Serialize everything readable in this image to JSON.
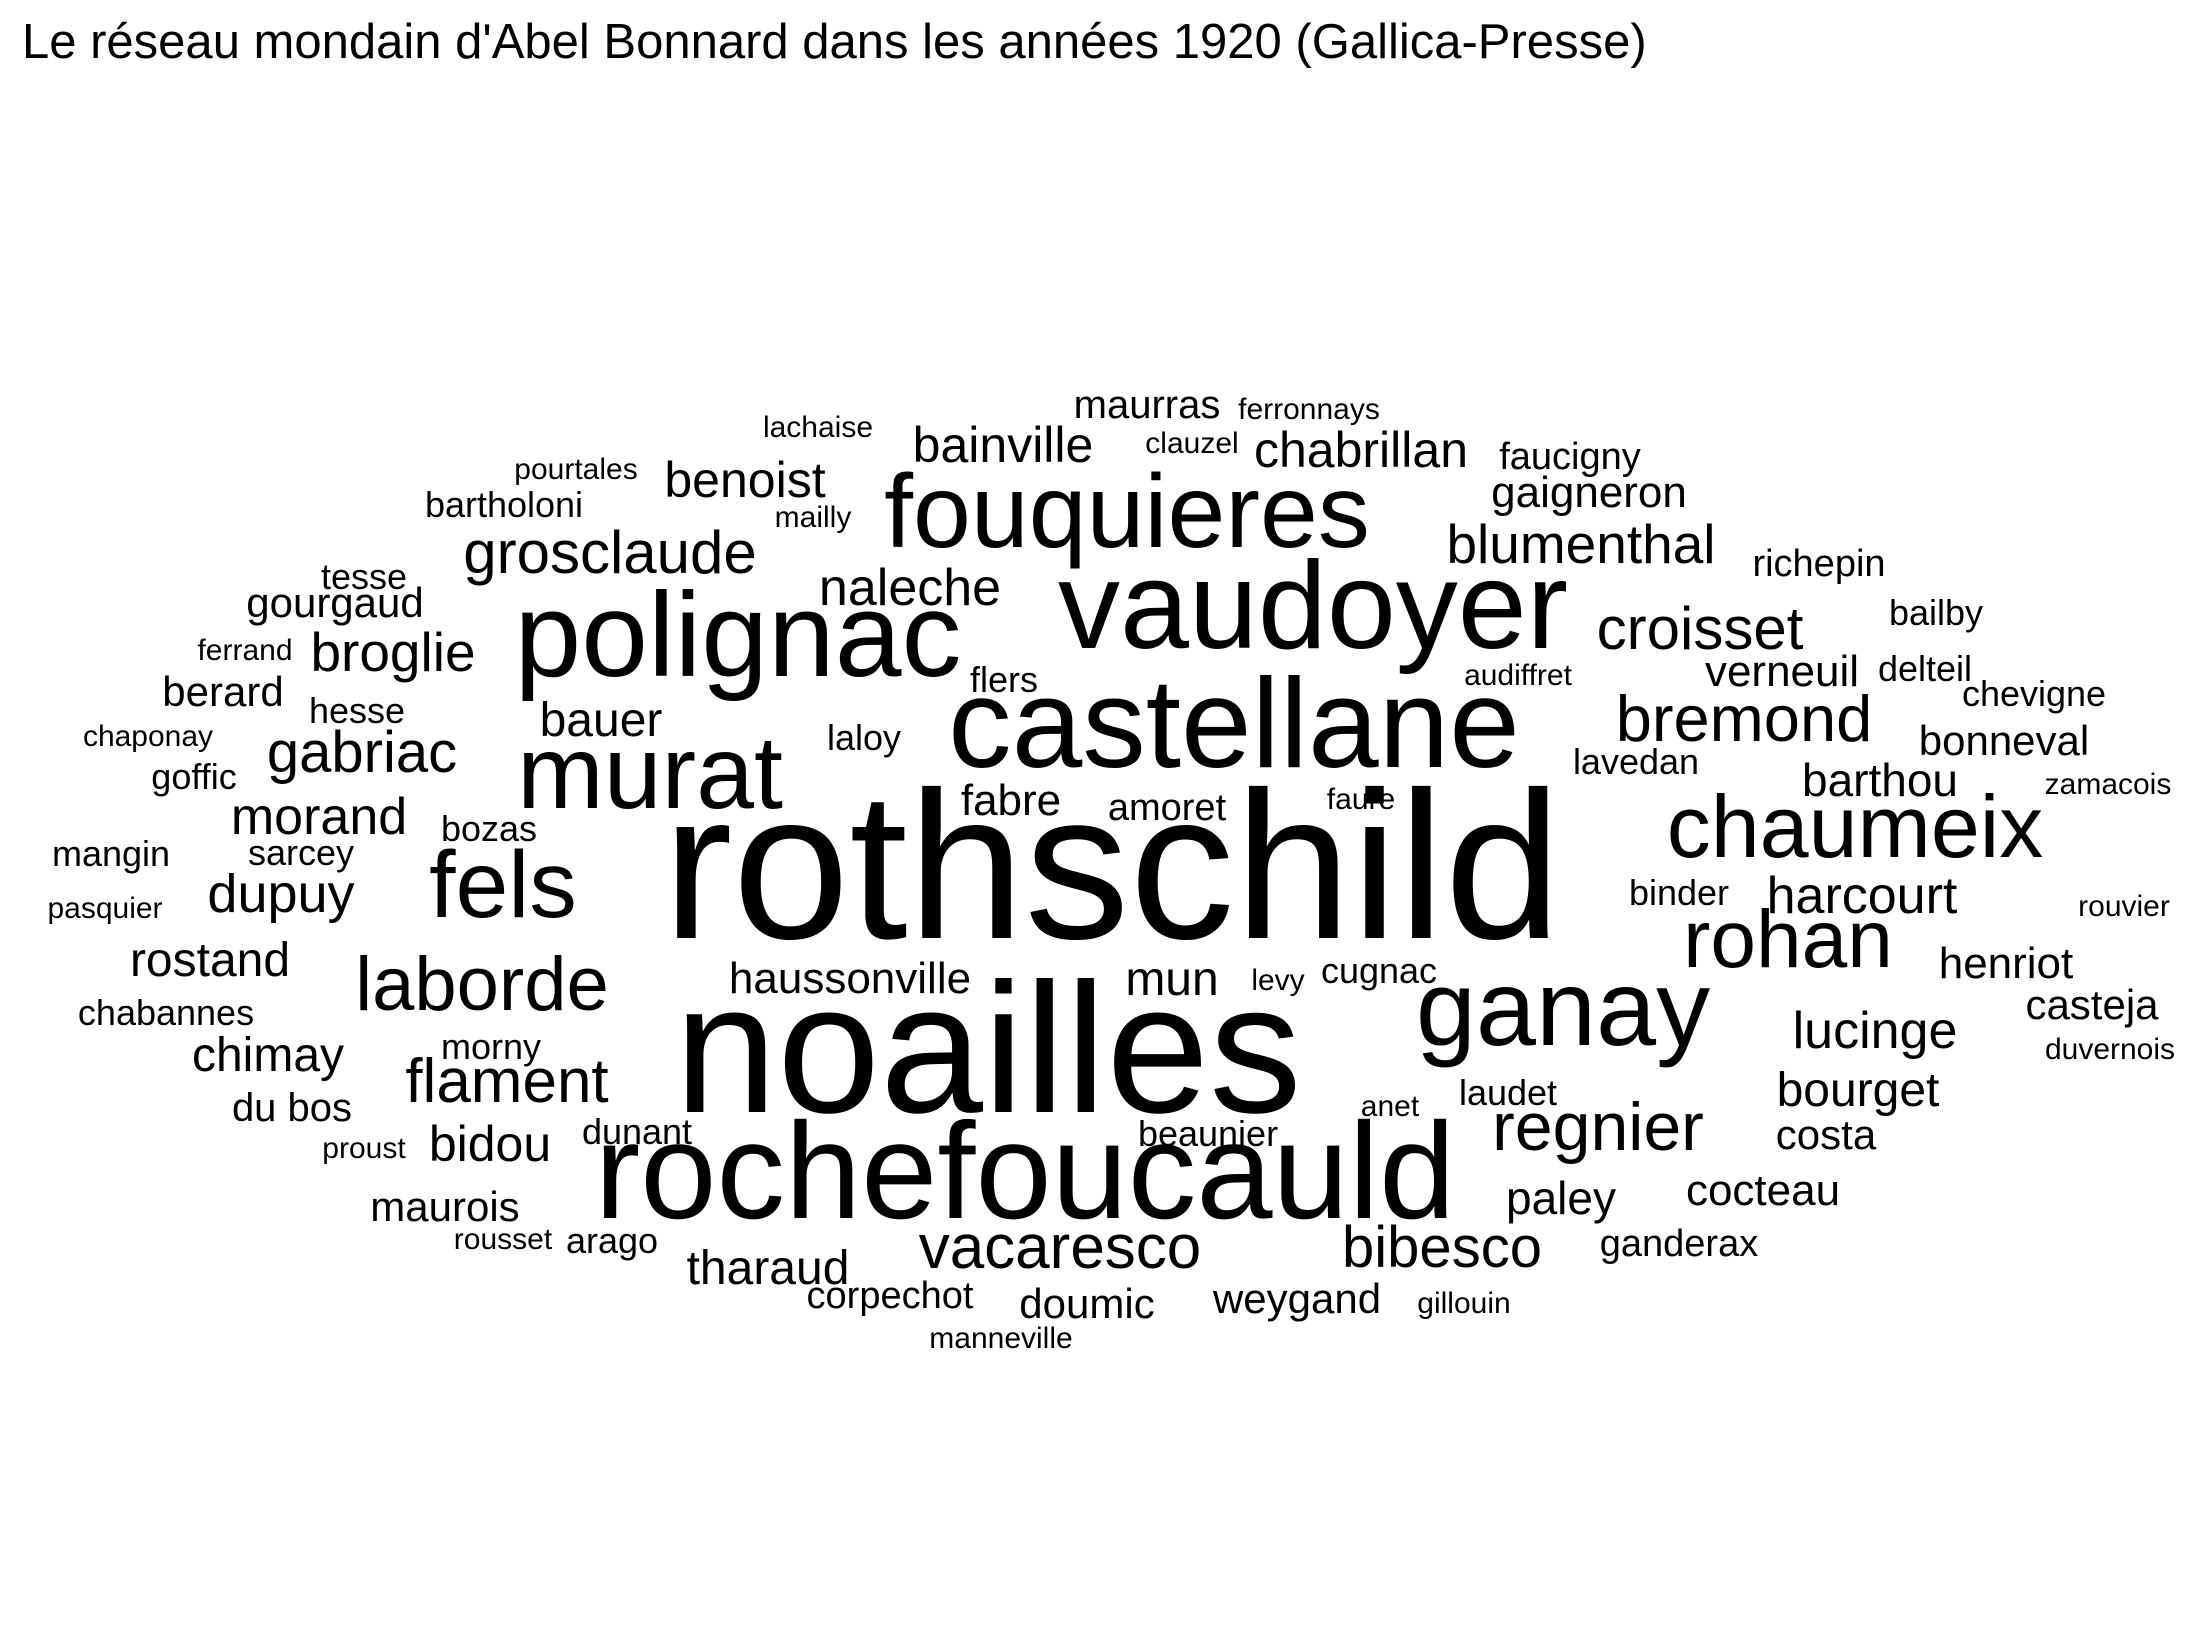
{
  "chart_data": {
    "type": "wordcloud",
    "title": "Le réseau mondain d'Abel Bonnard dans les années 1920 (Gallica-Presse)",
    "color": "#000000",
    "words": [
      {
        "text": "rothschild",
        "weight": 100
      },
      {
        "text": "noailles",
        "weight": 92
      },
      {
        "text": "rochefoucauld",
        "weight": 68
      },
      {
        "text": "castellane",
        "weight": 64
      },
      {
        "text": "vaudoyer",
        "weight": 62
      },
      {
        "text": "polignac",
        "weight": 62
      },
      {
        "text": "ganay",
        "weight": 54
      },
      {
        "text": "fouquieres",
        "weight": 52
      },
      {
        "text": "murat",
        "weight": 54
      },
      {
        "text": "fels",
        "weight": 46
      },
      {
        "text": "chaumeix",
        "weight": 44
      },
      {
        "text": "rohan",
        "weight": 42
      },
      {
        "text": "laborde",
        "weight": 38
      },
      {
        "text": "regnier",
        "weight": 34
      },
      {
        "text": "bremond",
        "weight": 32
      },
      {
        "text": "vacaresco",
        "weight": 31
      },
      {
        "text": "flament",
        "weight": 31
      },
      {
        "text": "croisset",
        "weight": 30
      },
      {
        "text": "grosclaude",
        "weight": 30
      },
      {
        "text": "bibesco",
        "weight": 29
      },
      {
        "text": "gabriac",
        "weight": 29
      },
      {
        "text": "blumenthal",
        "weight": 27
      },
      {
        "text": "broglie",
        "weight": 27
      },
      {
        "text": "dupuy",
        "weight": 27
      },
      {
        "text": "naleche",
        "weight": 26
      },
      {
        "text": "harcourt",
        "weight": 26
      },
      {
        "text": "lucinge",
        "weight": 26
      },
      {
        "text": "morand",
        "weight": 26
      },
      {
        "text": "bidou",
        "weight": 25
      },
      {
        "text": "chabrillan",
        "weight": 25
      },
      {
        "text": "bainville",
        "weight": 25
      },
      {
        "text": "benoist",
        "weight": 25
      },
      {
        "text": "bauer",
        "weight": 24
      },
      {
        "text": "chimay",
        "weight": 24
      },
      {
        "text": "mun",
        "weight": 24
      },
      {
        "text": "tharaud",
        "weight": 24
      },
      {
        "text": "bourget",
        "weight": 24
      },
      {
        "text": "rostand",
        "weight": 24
      },
      {
        "text": "barthou",
        "weight": 23
      },
      {
        "text": "paley",
        "weight": 23
      },
      {
        "text": "haussonville",
        "weight": 22
      },
      {
        "text": "fabre",
        "weight": 22
      },
      {
        "text": "gaigneron",
        "weight": 22
      },
      {
        "text": "verneuil",
        "weight": 22
      },
      {
        "text": "henriot",
        "weight": 22
      },
      {
        "text": "cocteau",
        "weight": 22
      },
      {
        "text": "doumic",
        "weight": 21
      },
      {
        "text": "maurois",
        "weight": 21
      },
      {
        "text": "weygand",
        "weight": 21
      },
      {
        "text": "bonneval",
        "weight": 21
      },
      {
        "text": "casteja",
        "weight": 21
      },
      {
        "text": "berard",
        "weight": 21
      },
      {
        "text": "gourgaud",
        "weight": 21
      },
      {
        "text": "costa",
        "weight": 21
      },
      {
        "text": "maurras",
        "weight": 20
      },
      {
        "text": "du bos",
        "weight": 20
      },
      {
        "text": "corpechot",
        "weight": 19
      },
      {
        "text": "amoret",
        "weight": 19
      },
      {
        "text": "faucigny",
        "weight": 19
      },
      {
        "text": "richepin",
        "weight": 19
      },
      {
        "text": "ganderax",
        "weight": 19
      },
      {
        "text": "chevigne",
        "weight": 18
      },
      {
        "text": "tesse",
        "weight": 18
      },
      {
        "text": "bartholoni",
        "weight": 18
      },
      {
        "text": "bailby",
        "weight": 18
      },
      {
        "text": "laloy",
        "weight": 18
      },
      {
        "text": "flers",
        "weight": 18
      },
      {
        "text": "delteil",
        "weight": 18
      },
      {
        "text": "lavedan",
        "weight": 18
      },
      {
        "text": "hesse",
        "weight": 18
      },
      {
        "text": "goffic",
        "weight": 18
      },
      {
        "text": "bozas",
        "weight": 18
      },
      {
        "text": "sarcey",
        "weight": 18
      },
      {
        "text": "mangin",
        "weight": 18
      },
      {
        "text": "morny",
        "weight": 18
      },
      {
        "text": "laudet",
        "weight": 18
      },
      {
        "text": "beaunier",
        "weight": 18
      },
      {
        "text": "dunant",
        "weight": 18
      },
      {
        "text": "arago",
        "weight": 18
      },
      {
        "text": "chabannes",
        "weight": 18
      },
      {
        "text": "cugnac",
        "weight": 18
      },
      {
        "text": "binder",
        "weight": 18
      },
      {
        "text": "lachaise",
        "weight": 16
      },
      {
        "text": "ferronnays",
        "weight": 16
      },
      {
        "text": "pourtales",
        "weight": 16
      },
      {
        "text": "clauzel",
        "weight": 16
      },
      {
        "text": "mailly",
        "weight": 16
      },
      {
        "text": "ferrand",
        "weight": 16
      },
      {
        "text": "chaponay",
        "weight": 16
      },
      {
        "text": "audiffret",
        "weight": 16
      },
      {
        "text": "faure",
        "weight": 16
      },
      {
        "text": "pasquier",
        "weight": 16
      },
      {
        "text": "zamacois",
        "weight": 16
      },
      {
        "text": "rouvier",
        "weight": 16
      },
      {
        "text": "duvernois",
        "weight": 16
      },
      {
        "text": "levy",
        "weight": 16
      },
      {
        "text": "anet",
        "weight": 16
      },
      {
        "text": "proust",
        "weight": 16
      },
      {
        "text": "rousset",
        "weight": 16
      },
      {
        "text": "gillouin",
        "weight": 16
      },
      {
        "text": "manneville",
        "weight": 16
      }
    ]
  }
}
